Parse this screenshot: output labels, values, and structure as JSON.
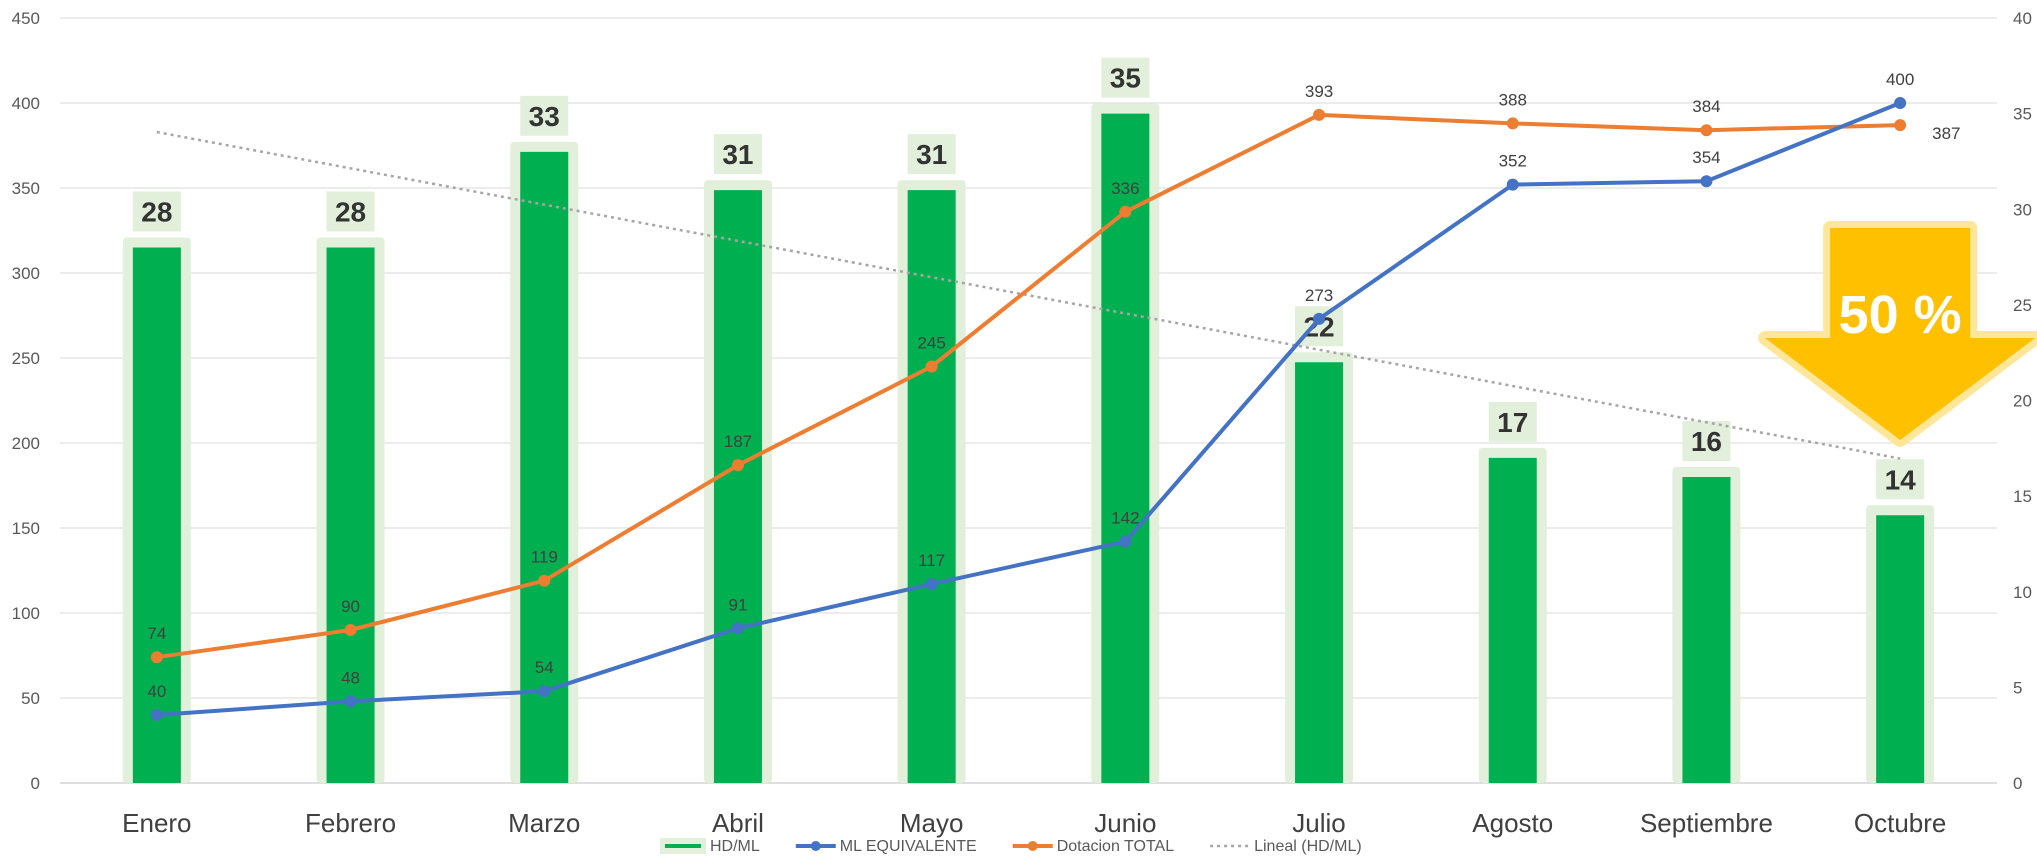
{
  "chart_data": {
    "type": "bar",
    "categories": [
      "Enero",
      "Febrero",
      "Marzo",
      "Abril",
      "Mayo",
      "Junio",
      "Julio",
      "Agosto",
      "Septiembre",
      "Octubre"
    ],
    "series": [
      {
        "name": "HD/ML",
        "type": "bar",
        "axis": "right",
        "values": [
          28,
          28,
          33,
          31,
          31,
          35,
          22,
          17,
          16,
          14
        ],
        "color": "#00B050"
      },
      {
        "name": "ML EQUIVALENTE",
        "type": "line",
        "axis": "left",
        "values": [
          40,
          48,
          54,
          91,
          117,
          142,
          273,
          352,
          354,
          400
        ],
        "color": "#4472C4"
      },
      {
        "name": "Dotacion TOTAL",
        "type": "line",
        "axis": "left",
        "values": [
          74,
          90,
          119,
          187,
          245,
          336,
          393,
          388,
          384,
          387
        ],
        "color": "#ED7D31"
      },
      {
        "name": "Lineal (HD/ML)",
        "type": "trendline",
        "axis": "right",
        "color": "#A6A6A6"
      }
    ],
    "y_left": {
      "min": 0,
      "max": 450,
      "ticks": [
        0,
        50,
        100,
        150,
        200,
        250,
        300,
        350,
        400,
        450
      ]
    },
    "y_right": {
      "min": 0,
      "max": 40,
      "ticks": [
        0,
        5,
        10,
        15,
        20,
        25,
        30,
        35,
        40
      ]
    },
    "grid": true,
    "legend_position": "bottom",
    "annotation": {
      "text": "50 %",
      "color": "#FFC000"
    }
  }
}
